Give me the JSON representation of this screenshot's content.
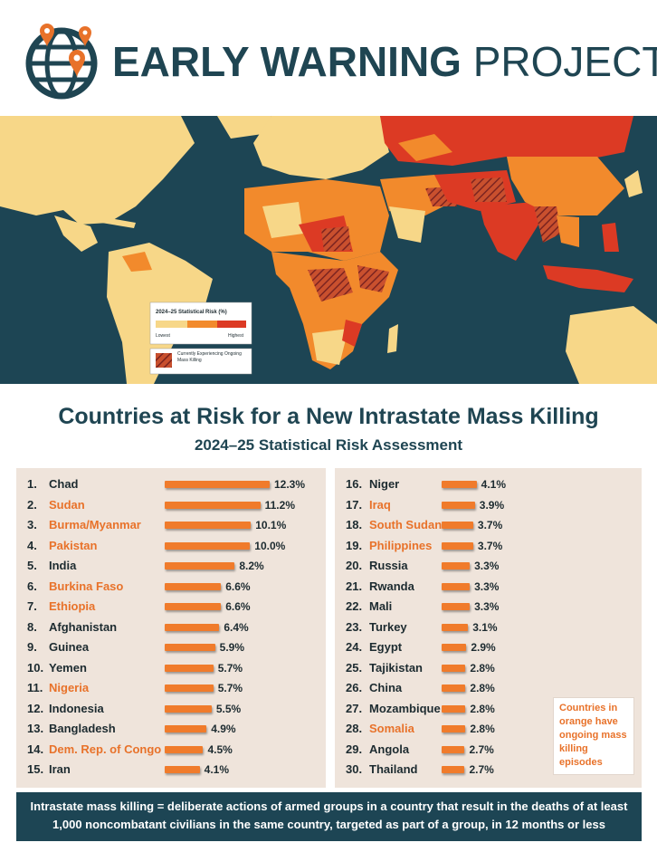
{
  "logo": {
    "bold": "EARLY WARNING",
    "light": "PROJECT",
    "icon": "globe-pin-icon"
  },
  "map": {
    "legend_title": "2024–25 Statistical Risk (%)",
    "legend_low": "Lowest",
    "legend_high": "Highest",
    "legend_hatch": "Currently Experiencing Ongoing Mass Killing",
    "colors": {
      "ocean": "#1d4554",
      "low": "#f7d788",
      "mid": "#f28a2c",
      "high": "#dc3a24",
      "hatch": "#8f2b23"
    }
  },
  "title": "Countries at Risk for a New Intrastate Mass Killing",
  "subtitle": "2024–25 Statistical Risk Assessment",
  "note": "Countries in orange have ongoing mass killing episodes",
  "footer": {
    "line1": "Intrastate mass killing = deliberate actions of armed groups in a country that result in the deaths of at least",
    "line2": "1,000 noncombatant civilians in the same country, targeted as part of a group, in 12 months or less"
  },
  "chart_data": {
    "type": "bar",
    "title": "Countries at Risk for a New Intrastate Mass Killing",
    "subtitle": "2024–25 Statistical Risk Assessment",
    "unit": "%",
    "ongoing_color": "#e8722a",
    "rows": [
      {
        "rank": "1.",
        "country": "Chad",
        "value": 12.3,
        "label": "12.3%",
        "ongoing": false
      },
      {
        "rank": "2.",
        "country": "Sudan",
        "value": 11.2,
        "label": "11.2%",
        "ongoing": true
      },
      {
        "rank": "3.",
        "country": "Burma/Myanmar",
        "value": 10.1,
        "label": "10.1%",
        "ongoing": true
      },
      {
        "rank": "4.",
        "country": "Pakistan",
        "value": 10.0,
        "label": "10.0%",
        "ongoing": true
      },
      {
        "rank": "5.",
        "country": "India",
        "value": 8.2,
        "label": "8.2%",
        "ongoing": false
      },
      {
        "rank": "6.",
        "country": "Burkina Faso",
        "value": 6.6,
        "label": "6.6%",
        "ongoing": true
      },
      {
        "rank": "7.",
        "country": "Ethiopia",
        "value": 6.6,
        "label": "6.6%",
        "ongoing": true
      },
      {
        "rank": "8.",
        "country": "Afghanistan",
        "value": 6.4,
        "label": "6.4%",
        "ongoing": false
      },
      {
        "rank": "9.",
        "country": "Guinea",
        "value": 5.9,
        "label": "5.9%",
        "ongoing": false
      },
      {
        "rank": "10.",
        "country": "Yemen",
        "value": 5.7,
        "label": "5.7%",
        "ongoing": false
      },
      {
        "rank": "11.",
        "country": "Nigeria",
        "value": 5.7,
        "label": "5.7%",
        "ongoing": true
      },
      {
        "rank": "12.",
        "country": "Indonesia",
        "value": 5.5,
        "label": "5.5%",
        "ongoing": false
      },
      {
        "rank": "13.",
        "country": "Bangladesh",
        "value": 4.9,
        "label": "4.9%",
        "ongoing": false
      },
      {
        "rank": "14.",
        "country": "Dem. Rep. of Congo",
        "value": 4.5,
        "label": "4.5%",
        "ongoing": true
      },
      {
        "rank": "15.",
        "country": "Iran",
        "value": 4.1,
        "label": "4.1%",
        "ongoing": false
      },
      {
        "rank": "16.",
        "country": "Niger",
        "value": 4.1,
        "label": "4.1%",
        "ongoing": false
      },
      {
        "rank": "17.",
        "country": "Iraq",
        "value": 3.9,
        "label": "3.9%",
        "ongoing": true
      },
      {
        "rank": "18.",
        "country": "South Sudan",
        "value": 3.7,
        "label": "3.7%",
        "ongoing": true
      },
      {
        "rank": "19.",
        "country": "Philippines",
        "value": 3.7,
        "label": "3.7%",
        "ongoing": true
      },
      {
        "rank": "20.",
        "country": "Russia",
        "value": 3.3,
        "label": "3.3%",
        "ongoing": false
      },
      {
        "rank": "21.",
        "country": "Rwanda",
        "value": 3.3,
        "label": "3.3%",
        "ongoing": false
      },
      {
        "rank": "22.",
        "country": "Mali",
        "value": 3.3,
        "label": "3.3%",
        "ongoing": false
      },
      {
        "rank": "23.",
        "country": "Turkey",
        "value": 3.1,
        "label": "3.1%",
        "ongoing": false
      },
      {
        "rank": "24.",
        "country": "Egypt",
        "value": 2.9,
        "label": "2.9%",
        "ongoing": false
      },
      {
        "rank": "25.",
        "country": "Tajikistan",
        "value": 2.8,
        "label": "2.8%",
        "ongoing": false
      },
      {
        "rank": "26.",
        "country": "China",
        "value": 2.8,
        "label": "2.8%",
        "ongoing": false
      },
      {
        "rank": "27.",
        "country": "Mozambique",
        "value": 2.8,
        "label": "2.8%",
        "ongoing": false
      },
      {
        "rank": "28.",
        "country": "Somalia",
        "value": 2.8,
        "label": "2.8%",
        "ongoing": true
      },
      {
        "rank": "29.",
        "country": "Angola",
        "value": 2.7,
        "label": "2.7%",
        "ongoing": false
      },
      {
        "rank": "30.",
        "country": "Thailand",
        "value": 2.7,
        "label": "2.7%",
        "ongoing": false
      }
    ]
  }
}
